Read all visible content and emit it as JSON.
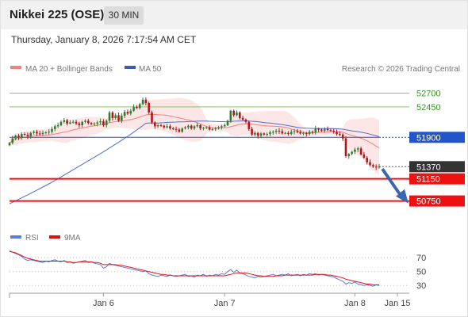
{
  "header": {
    "symbol": "Nikkei 225 (OSE)",
    "timeframe": "30 MIN",
    "timestamp": "Thursday, January 8, 2026 7:17:54 AM CET"
  },
  "legend": {
    "ma20_label": "MA 20 + Bollinger Bands",
    "ma50_label": "MA 50",
    "credit": "Research © 2026 Trading Central",
    "rsi_label": "RSI",
    "rsi_ma_label": "9MA"
  },
  "colors": {
    "up": "#2f7d32",
    "down": "#b0171b",
    "ma20": "#f08080",
    "band_fill": "#fde2e2",
    "ma50": "#4a6fd0",
    "resistance": "#8dc26f",
    "support": "#ee1111",
    "pivot": "#2255cc",
    "last": "#333333",
    "rsi": "#5a7ddb",
    "rsi_ma": "#e01010",
    "arrow": "#3a66b0"
  },
  "chart_data": [
    {
      "type": "candlestick",
      "title": "Nikkei 225 (OSE)",
      "interval": "30 MIN",
      "x_ticks": [
        "Jan 6",
        "Jan 7",
        "Jan 8",
        "Jan 15"
      ],
      "ylim": [
        50300,
        52950
      ],
      "levels": [
        {
          "value": 52700,
          "label": "52700",
          "kind": "resistance"
        },
        {
          "value": 52450,
          "label": "52450",
          "kind": "resistance"
        },
        {
          "value": 51900,
          "label": "51900",
          "kind": "pivot"
        },
        {
          "value": 51370,
          "label": "51370",
          "kind": "last"
        },
        {
          "value": 51150,
          "label": "51150",
          "kind": "support"
        },
        {
          "value": 50750,
          "label": "50750",
          "kind": "support"
        }
      ],
      "close": [
        51800,
        51880,
        51930,
        51900,
        51960,
        51950,
        51920,
        51980,
        52000,
        51970,
        51960,
        51980,
        51990,
        52000,
        52050,
        52100,
        52120,
        52180,
        52210,
        52150,
        52170,
        52180,
        52150,
        52120,
        52180,
        52200,
        52160,
        52140,
        52150,
        52170,
        52190,
        52120,
        52200,
        52350,
        52250,
        52300,
        52200,
        52290,
        52360,
        52330,
        52380,
        52450,
        52430,
        52500,
        52580,
        52520,
        52350,
        52170,
        52100,
        52120,
        52110,
        52080,
        52100,
        52060,
        52050,
        52040,
        52000,
        52060,
        52080,
        52110,
        52060,
        52100,
        52120,
        52060,
        52070,
        52080,
        52040,
        52050,
        52060,
        52080,
        52100,
        52120,
        52200,
        52380,
        52300,
        52350,
        52250,
        52220,
        52180,
        52050,
        51950,
        51980,
        51930,
        51970,
        51950,
        51960,
        51990,
        52000,
        52020,
        52010,
        51970,
        51980,
        51960,
        52000,
        52010,
        51990,
        51970,
        51980,
        51960,
        52000,
        51990,
        52060,
        52040,
        52020,
        52050,
        52030,
        52020,
        52000,
        51960,
        51950,
        51880,
        51560,
        51600,
        51640,
        51680,
        51700,
        51590,
        51530,
        51450,
        51400,
        51370,
        51360,
        51370
      ],
      "ma20_end": 51690,
      "ma50_end": 51880
    },
    {
      "type": "line",
      "title": "RSI",
      "ylim": [
        20,
        85
      ],
      "y_ticks": [
        70,
        50,
        30
      ],
      "series": [
        {
          "name": "RSI",
          "values": [
            80,
            78,
            76,
            74,
            72,
            68,
            66,
            67,
            66,
            65,
            64,
            63,
            65,
            64,
            66,
            67,
            65,
            64,
            66,
            63,
            64,
            62,
            63,
            64,
            65,
            66,
            63,
            64,
            62,
            61,
            60,
            55,
            57,
            62,
            60,
            59,
            58,
            57,
            56,
            55,
            54,
            53,
            52,
            51,
            50,
            51,
            47,
            45,
            44,
            43,
            45,
            44,
            43,
            45,
            44,
            43,
            44,
            45,
            46,
            43,
            44,
            42,
            45,
            44,
            46,
            43,
            45,
            44,
            46,
            45,
            47,
            46,
            50,
            53,
            49,
            52,
            48,
            47,
            45,
            43,
            42,
            41,
            43,
            42,
            43,
            44,
            45,
            46,
            44,
            45,
            46,
            45,
            47,
            44,
            45,
            46,
            44,
            46,
            45,
            47,
            46,
            47,
            45,
            46,
            45,
            44,
            43,
            42,
            40,
            38,
            36,
            32,
            34,
            33,
            35,
            32,
            31,
            30,
            31,
            30,
            29,
            31,
            30
          ]
        },
        {
          "name": "9MA",
          "values": [
            79,
            78,
            77,
            75,
            73,
            71,
            69,
            68,
            67,
            66,
            65,
            65,
            65,
            65,
            65,
            65,
            65,
            65,
            65,
            64,
            64,
            63,
            63,
            64,
            64,
            64,
            64,
            64,
            63,
            63,
            62,
            60,
            60,
            60,
            60,
            60,
            59,
            59,
            58,
            57,
            56,
            55,
            54,
            53,
            52,
            51,
            50,
            49,
            48,
            47,
            46,
            46,
            45,
            45,
            44,
            44,
            44,
            44,
            44,
            44,
            44,
            44,
            44,
            44,
            44,
            44,
            44,
            44,
            44,
            44,
            44,
            44,
            45,
            46,
            47,
            48,
            48,
            48,
            48,
            47,
            46,
            45,
            44,
            44,
            43,
            43,
            43,
            43,
            44,
            44,
            44,
            45,
            45,
            45,
            45,
            45,
            45,
            45,
            45,
            45,
            45,
            46,
            46,
            46,
            46,
            45,
            45,
            44,
            43,
            42,
            41,
            39,
            38,
            37,
            36,
            35,
            34,
            33,
            32,
            32,
            31,
            31,
            31
          ]
        }
      ]
    }
  ]
}
